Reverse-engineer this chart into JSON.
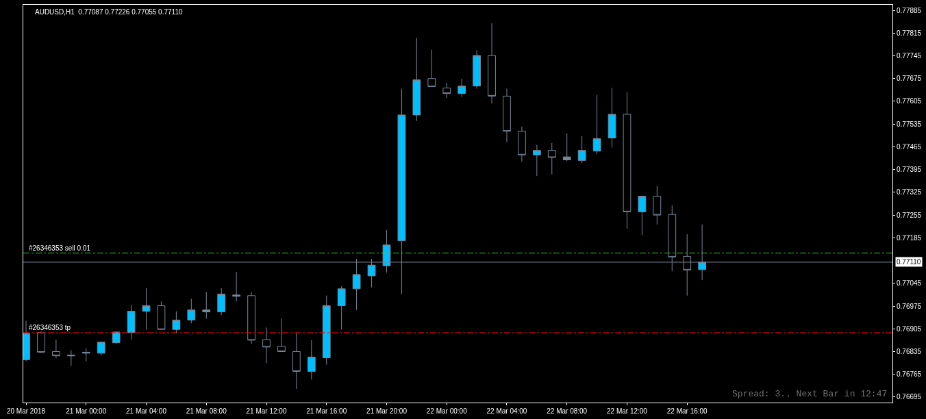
{
  "chart_data": {
    "type": "candlestick",
    "title": "AUDUSD,H1  0.77087 0.77226 0.77055 0.77110",
    "x": [
      "2018-03-20T20:00",
      "2018-03-20T21:00",
      "2018-03-20T22:00",
      "2018-03-20T23:00",
      "2018-03-21T00:00",
      "2018-03-21T01:00",
      "2018-03-21T02:00",
      "2018-03-21T03:00",
      "2018-03-21T04:00",
      "2018-03-21T05:00",
      "2018-03-21T06:00",
      "2018-03-21T07:00",
      "2018-03-21T08:00",
      "2018-03-21T09:00",
      "2018-03-21T10:00",
      "2018-03-21T11:00",
      "2018-03-21T12:00",
      "2018-03-21T13:00",
      "2018-03-21T14:00",
      "2018-03-21T15:00",
      "2018-03-21T16:00",
      "2018-03-21T17:00",
      "2018-03-21T18:00",
      "2018-03-21T19:00",
      "2018-03-21T20:00",
      "2018-03-21T21:00",
      "2018-03-21T22:00",
      "2018-03-21T23:00",
      "2018-03-22T00:00",
      "2018-03-22T01:00",
      "2018-03-22T02:00",
      "2018-03-22T03:00",
      "2018-03-22T04:00",
      "2018-03-22T05:00",
      "2018-03-22T06:00",
      "2018-03-22T07:00",
      "2018-03-22T08:00",
      "2018-03-22T09:00",
      "2018-03-22T10:00",
      "2018-03-22T11:00",
      "2018-03-22T12:00",
      "2018-03-22T13:00",
      "2018-03-22T14:00",
      "2018-03-22T15:00",
      "2018-03-22T16:00",
      "2018-03-22T17:00"
    ],
    "ohlc": [
      [
        0.7681,
        0.7693,
        0.76805,
        0.76891
      ],
      [
        0.76893,
        0.76897,
        0.7683,
        0.76833
      ],
      [
        0.76835,
        0.76872,
        0.76814,
        0.76822
      ],
      [
        0.76824,
        0.76839,
        0.76791,
        0.76822
      ],
      [
        0.7683,
        0.76845,
        0.76805,
        0.76833
      ],
      [
        0.7683,
        0.76866,
        0.76822,
        0.76864
      ],
      [
        0.76862,
        0.76897,
        0.76859,
        0.76895
      ],
      [
        0.76893,
        0.76978,
        0.76872,
        0.76959
      ],
      [
        0.76959,
        0.7703,
        0.76903,
        0.76976
      ],
      [
        0.76976,
        0.76989,
        0.76903,
        0.76903
      ],
      [
        0.76903,
        0.76959,
        0.76891,
        0.76932
      ],
      [
        0.76932,
        0.76997,
        0.76922,
        0.76963
      ],
      [
        0.76963,
        0.77018,
        0.76936,
        0.76957
      ],
      [
        0.76957,
        0.7703,
        0.76947,
        0.77012
      ],
      [
        0.77009,
        0.7708,
        0.76989,
        0.77005
      ],
      [
        0.77007,
        0.77018,
        0.76859,
        0.7687
      ],
      [
        0.76872,
        0.76909,
        0.76799,
        0.76849
      ],
      [
        0.76851,
        0.76936,
        0.76835,
        0.76835
      ],
      [
        0.76835,
        0.76893,
        0.7672,
        0.76774
      ],
      [
        0.76774,
        0.7687,
        0.76749,
        0.76818
      ],
      [
        0.76816,
        0.77007,
        0.76795,
        0.76976
      ],
      [
        0.76976,
        0.77036,
        0.76903,
        0.77028
      ],
      [
        0.77028,
        0.7712,
        0.76963,
        0.77072
      ],
      [
        0.77068,
        0.7712,
        0.77032,
        0.77101
      ],
      [
        0.77099,
        0.77209,
        0.77078,
        0.77163
      ],
      [
        0.77176,
        0.77644,
        0.77012,
        0.77563
      ],
      [
        0.77563,
        0.778,
        0.77544,
        0.77671
      ],
      [
        0.77675,
        0.77764,
        0.7765,
        0.7765
      ],
      [
        0.77646,
        0.77662,
        0.77615,
        0.77629
      ],
      [
        0.77629,
        0.77675,
        0.77619,
        0.77652
      ],
      [
        0.77652,
        0.77762,
        0.77644,
        0.77746
      ],
      [
        0.77746,
        0.77845,
        0.77598,
        0.77621
      ],
      [
        0.77621,
        0.77644,
        0.77479,
        0.77513
      ],
      [
        0.77513,
        0.77527,
        0.77419,
        0.7744
      ],
      [
        0.7744,
        0.77471,
        0.77375,
        0.77454
      ],
      [
        0.77454,
        0.77477,
        0.7738,
        0.77432
      ],
      [
        0.77434,
        0.77506,
        0.77421,
        0.77425
      ],
      [
        0.77423,
        0.77498,
        0.77415,
        0.77454
      ],
      [
        0.77452,
        0.77625,
        0.77442,
        0.7749
      ],
      [
        0.77492,
        0.77646,
        0.77463,
        0.77565
      ],
      [
        0.77565,
        0.77633,
        0.77213,
        0.77265
      ],
      [
        0.77265,
        0.77315,
        0.77194,
        0.77313
      ],
      [
        0.77313,
        0.77344,
        0.77226,
        0.77255
      ],
      [
        0.77257,
        0.77284,
        0.77082,
        0.77126
      ],
      [
        0.77128,
        0.77196,
        0.77007,
        0.77086
      ],
      [
        0.77087,
        0.77226,
        0.77055,
        0.7711
      ]
    ],
    "colors": [
      "#00bfff",
      "#000000",
      "#000000",
      "#778899",
      "#778899",
      "#00bfff",
      "#00bfff",
      "#00bfff",
      "#00bfff",
      "#000000",
      "#00bfff",
      "#00bfff",
      "#778899",
      "#00bfff",
      "#778899",
      "#000000",
      "#000000",
      "#000000",
      "#000000",
      "#00bfff",
      "#00bfff",
      "#00bfff",
      "#00bfff",
      "#00bfff",
      "#00bfff",
      "#00bfff",
      "#00bfff",
      "#000000",
      "#000000",
      "#00bfff",
      "#00bfff",
      "#000000",
      "#000000",
      "#000000",
      "#00bfff",
      "#000000",
      "#778899",
      "#00bfff",
      "#00bfff",
      "#00bfff",
      "#000000",
      "#00bfff",
      "#000000",
      "#000000",
      "#000000",
      "#00bfff"
    ],
    "xlim": [
      "2018-03-20T19:49",
      "2018-03-23T05:40"
    ],
    "xticks": [
      {
        "value": "2018-03-20T20:00",
        "label": "20 Mar 2018"
      },
      {
        "value": "2018-03-21T00:00",
        "label": "21 Mar 00:00"
      },
      {
        "value": "2018-03-21T04:00",
        "label": "21 Mar 04:00"
      },
      {
        "value": "2018-03-21T08:00",
        "label": "21 Mar 08:00"
      },
      {
        "value": "2018-03-21T12:00",
        "label": "21 Mar 12:00"
      },
      {
        "value": "2018-03-21T16:00",
        "label": "21 Mar 16:00"
      },
      {
        "value": "2018-03-21T20:00",
        "label": "21 Mar 20:00"
      },
      {
        "value": "2018-03-22T00:00",
        "label": "22 Mar 00:00"
      },
      {
        "value": "2018-03-22T04:00",
        "label": "22 Mar 04:00"
      },
      {
        "value": "2018-03-22T08:00",
        "label": "22 Mar 08:00"
      },
      {
        "value": "2018-03-22T12:00",
        "label": "22 Mar 12:00"
      },
      {
        "value": "2018-03-22T16:00",
        "label": "22 Mar 16:00"
      }
    ],
    "ylim": [
      0.76678,
      0.77902
    ],
    "yticks": [
      0.77885,
      0.77815,
      0.77745,
      0.77675,
      0.77605,
      0.77535,
      0.77465,
      0.77395,
      0.77325,
      0.77255,
      0.77185,
      0.77045,
      0.76975,
      0.76905,
      0.76835,
      0.76765,
      0.76695
    ],
    "ref_lines": [
      {
        "axis": "y",
        "value": 0.77138,
        "label": "#26346353 sell 0.01",
        "color": "#32cd32",
        "line_style": "dashdot"
      },
      {
        "axis": "y",
        "value": 0.76893,
        "label": "#26346353 tp",
        "color": "#ff0000",
        "line_style": "dashdot"
      },
      {
        "axis": "y",
        "value": 0.7711,
        "label": "0.77110",
        "color": "#778899",
        "line_style": "solid"
      }
    ],
    "annotations": [
      "Spread: 3.. Next Bar in 12:47"
    ],
    "grid": false
  }
}
